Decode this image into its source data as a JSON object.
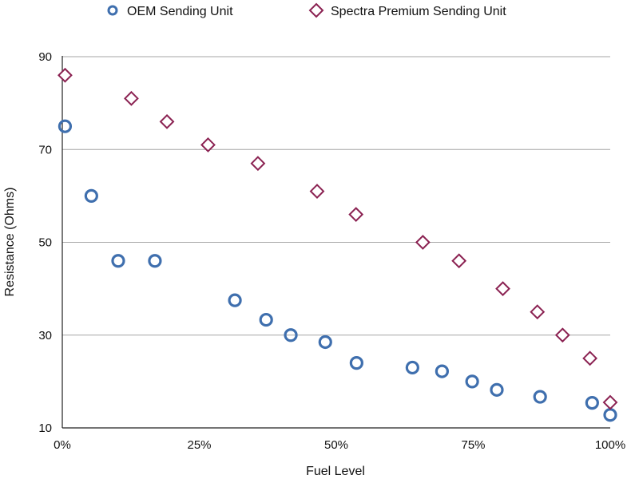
{
  "chart_data": {
    "type": "scatter",
    "title": "",
    "xlabel": "Fuel Level",
    "ylabel": "Resistance (Ohms)",
    "xlim": [
      0,
      100
    ],
    "ylim": [
      10,
      90
    ],
    "x_ticks": [
      0,
      25,
      50,
      75,
      100
    ],
    "x_tick_labels": [
      "0%",
      "25%",
      "50%",
      "75%",
      "100%"
    ],
    "y_ticks": [
      10,
      30,
      50,
      70,
      90
    ],
    "y_tick_labels": [
      "10",
      "30",
      "50",
      "70",
      "90"
    ],
    "grid": "horizontal",
    "legend_position": "top",
    "series": [
      {
        "name": "OEM Sending Unit",
        "marker": "circle",
        "color": "#3f6fae",
        "points": [
          {
            "x": 0.5,
            "y": 75
          },
          {
            "x": 5.3,
            "y": 60
          },
          {
            "x": 10.2,
            "y": 46
          },
          {
            "x": 16.9,
            "y": 46
          },
          {
            "x": 31.5,
            "y": 37.5
          },
          {
            "x": 37.2,
            "y": 33.3
          },
          {
            "x": 41.7,
            "y": 30
          },
          {
            "x": 48,
            "y": 28.5
          },
          {
            "x": 53.7,
            "y": 24
          },
          {
            "x": 63.9,
            "y": 23
          },
          {
            "x": 69.3,
            "y": 22.2
          },
          {
            "x": 74.8,
            "y": 20
          },
          {
            "x": 79.3,
            "y": 18.2
          },
          {
            "x": 87.2,
            "y": 16.7
          },
          {
            "x": 96.7,
            "y": 15.4
          },
          {
            "x": 100,
            "y": 12.8
          }
        ]
      },
      {
        "name": "Spectra Premium Sending Unit",
        "marker": "diamond",
        "color": "#8b2252",
        "points": [
          {
            "x": 0.5,
            "y": 86
          },
          {
            "x": 12.6,
            "y": 81
          },
          {
            "x": 19.1,
            "y": 76
          },
          {
            "x": 26.6,
            "y": 71
          },
          {
            "x": 35.7,
            "y": 67
          },
          {
            "x": 46.5,
            "y": 61
          },
          {
            "x": 53.6,
            "y": 56
          },
          {
            "x": 65.8,
            "y": 50
          },
          {
            "x": 72.4,
            "y": 46
          },
          {
            "x": 80.4,
            "y": 40
          },
          {
            "x": 86.7,
            "y": 35
          },
          {
            "x": 91.3,
            "y": 30
          },
          {
            "x": 96.3,
            "y": 25
          },
          {
            "x": 100,
            "y": 15.5
          }
        ]
      }
    ]
  }
}
